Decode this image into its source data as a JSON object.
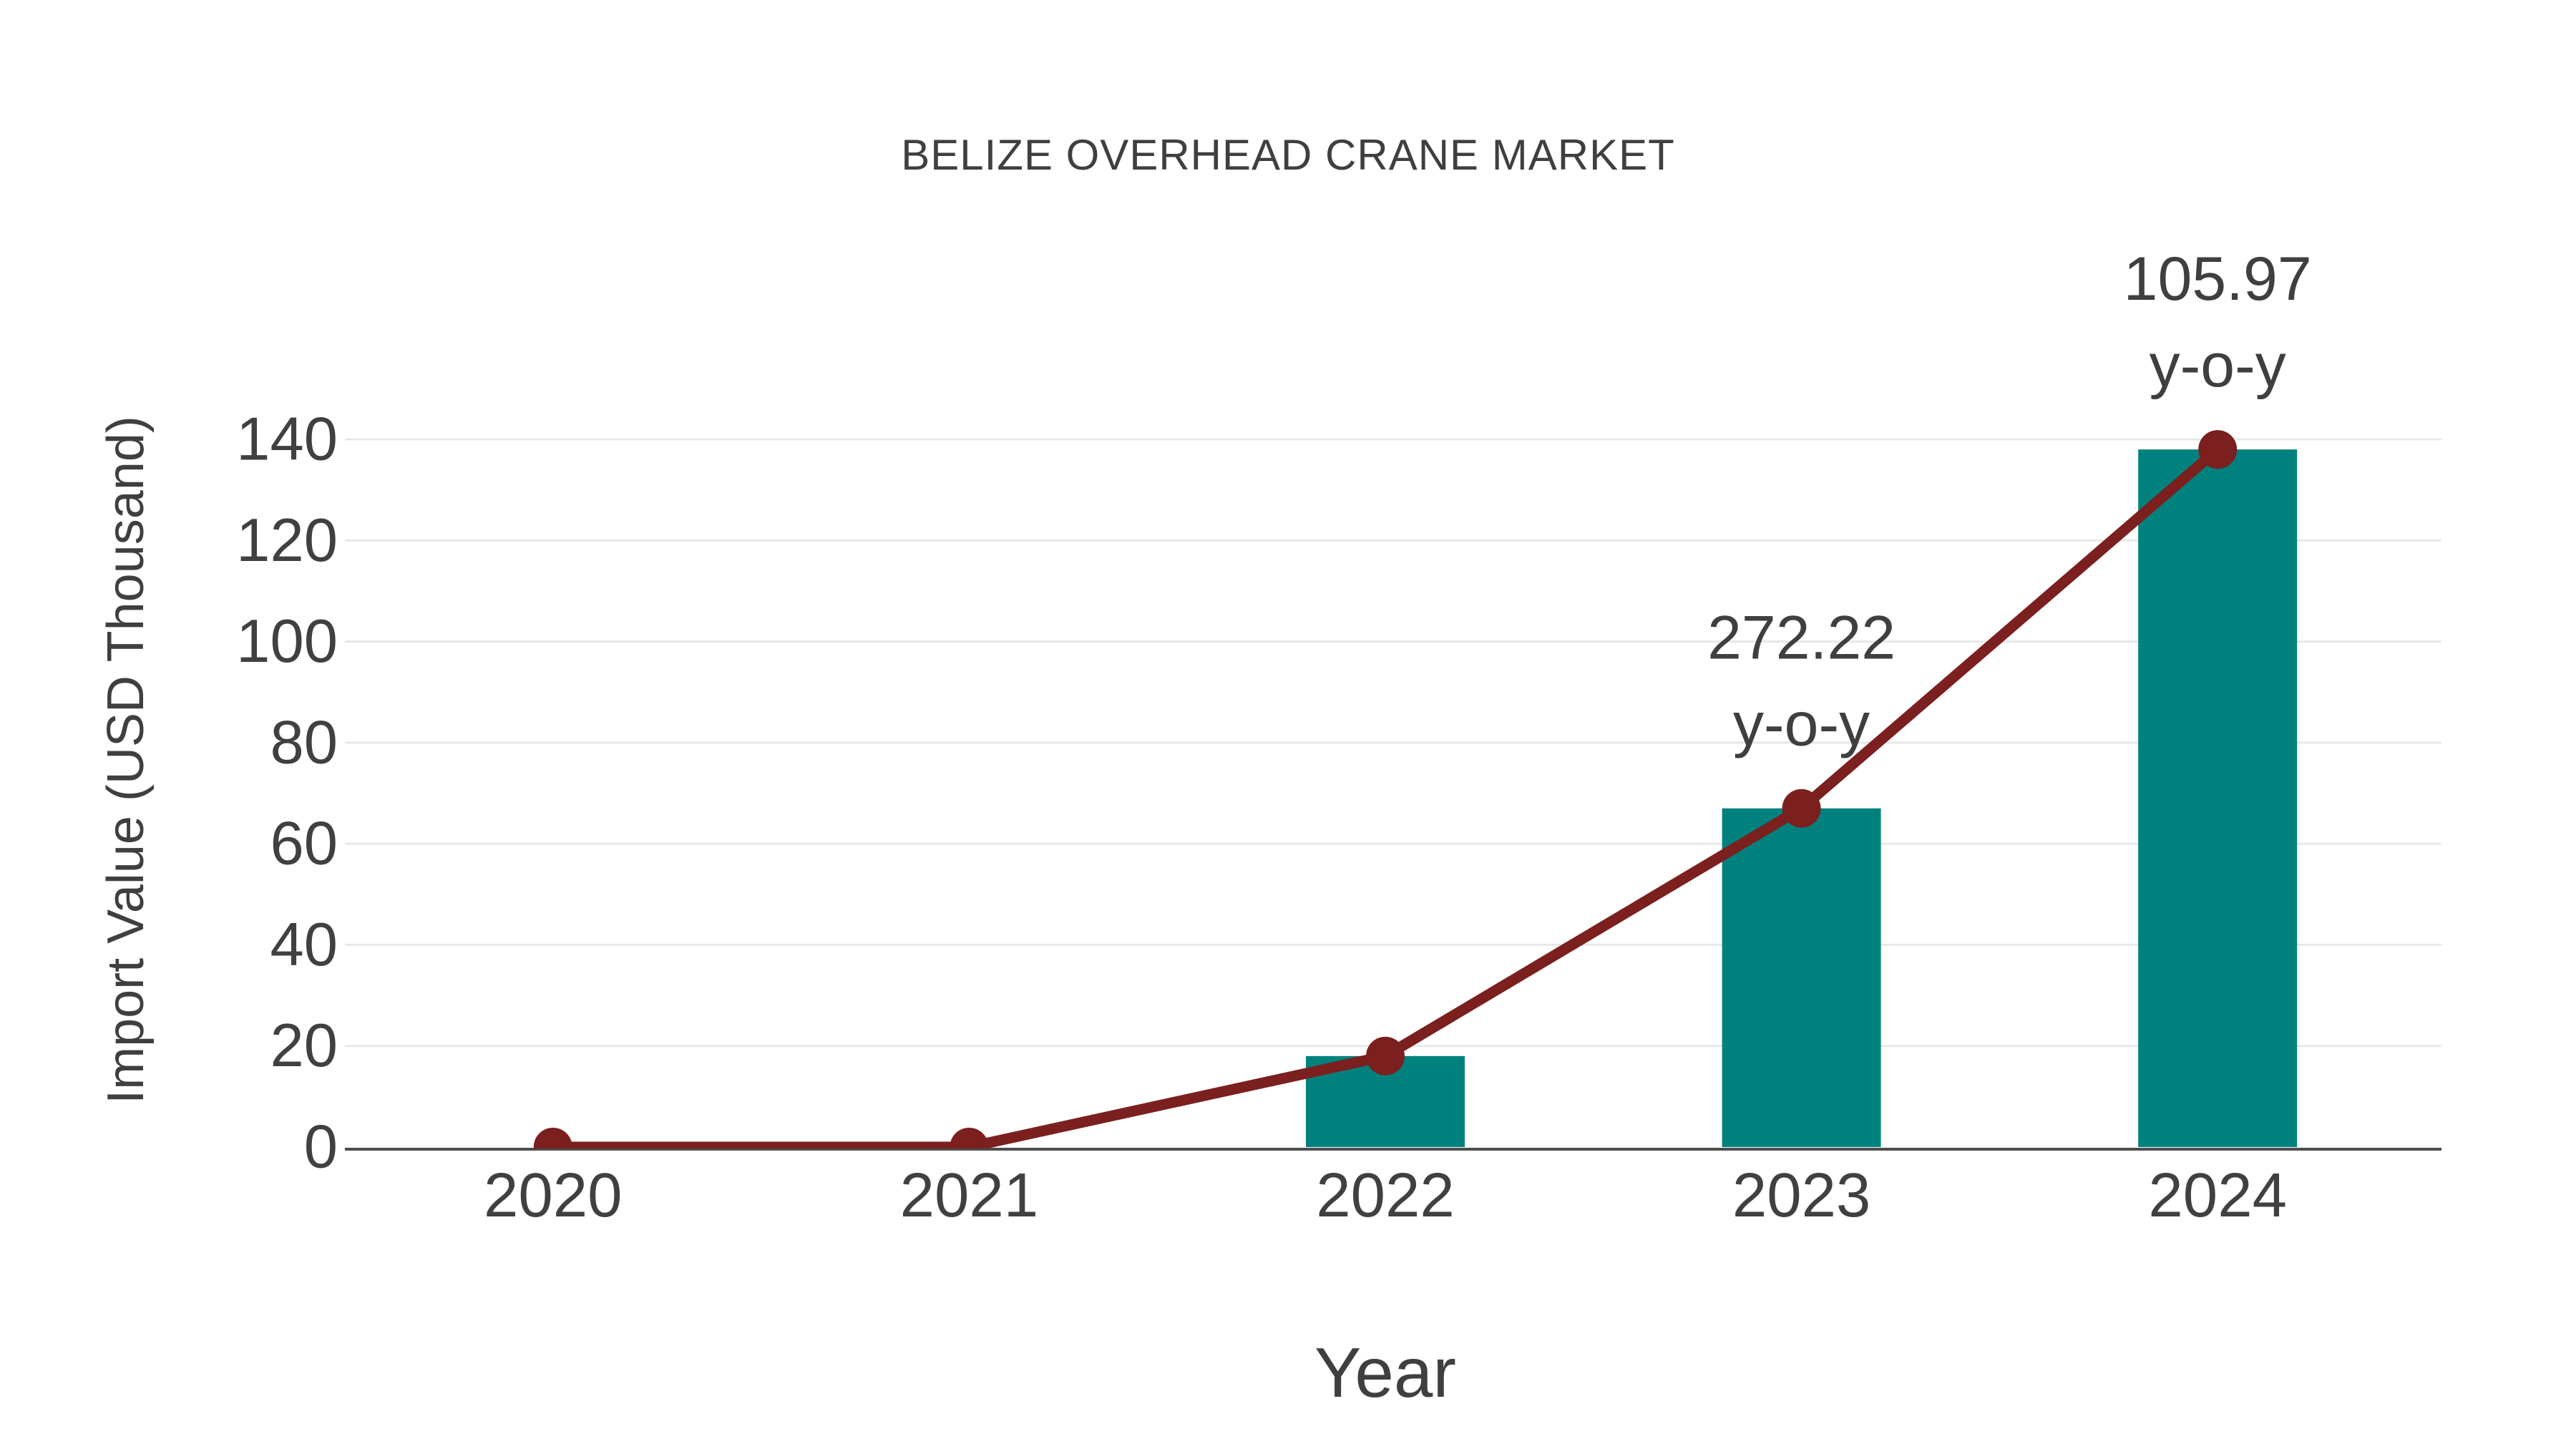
{
  "figure": {
    "background": "#ffffff"
  },
  "chart_data": {
    "type": "bar",
    "title": "BELIZE OVERHEAD CRANE MARKET",
    "xlabel": "Year",
    "ylabel": "Import Value (USD Thousand)",
    "categories": [
      "2020",
      "2021",
      "2022",
      "2023",
      "2024"
    ],
    "series": [
      {
        "name": "Import Value bars",
        "type": "bar",
        "color": "#00817d",
        "values": [
          0,
          0,
          18,
          67,
          138
        ]
      },
      {
        "name": "Import Value trend",
        "type": "line",
        "color": "#7b1f1f",
        "marker": "circle",
        "values": [
          0,
          0,
          18,
          67,
          138
        ]
      }
    ],
    "annotations": [
      {
        "category": "2023",
        "text_lines": [
          "272.22",
          "y-o-y"
        ]
      },
      {
        "category": "2024",
        "text_lines": [
          "105.97",
          "y-o-y"
        ]
      }
    ],
    "yticks": [
      0,
      20,
      40,
      60,
      80,
      100,
      120,
      140
    ],
    "ylim": [
      0,
      140
    ],
    "grid": true,
    "legend_position": "none",
    "style": {
      "text_color": "#3f3f3f",
      "tick_color": "#404040",
      "grid_color": "#e8e8e8",
      "axis_color": "#4d4d4d"
    }
  }
}
